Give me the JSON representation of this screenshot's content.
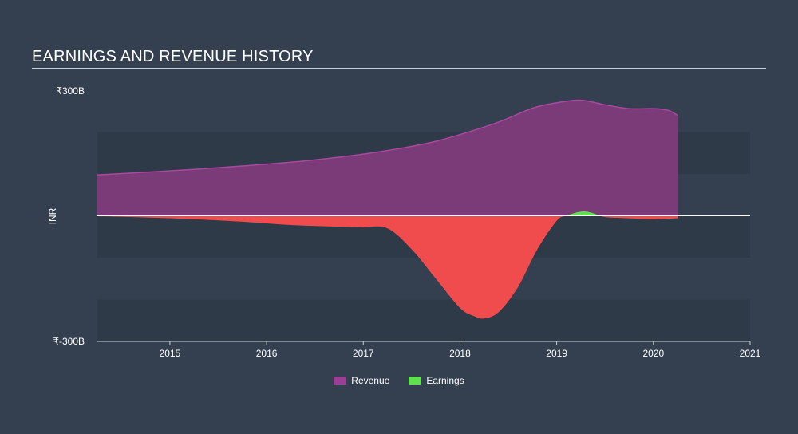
{
  "chart_data": {
    "type": "area",
    "title": "EARNINGS AND REVENUE HISTORY",
    "ylabel": "INR",
    "ytick_labels": [
      "₹300B",
      "₹-300B"
    ],
    "ylim": [
      -300,
      300
    ],
    "xlim": [
      2014.25,
      2021.0
    ],
    "xticks": [
      2015,
      2016,
      2017,
      2018,
      2019,
      2020,
      2021
    ],
    "xtick_labels": [
      "2015",
      "2016",
      "2017",
      "2018",
      "2019",
      "2020",
      "2021"
    ],
    "grid": true,
    "legend_position": "bottom-center",
    "series": [
      {
        "name": "Revenue",
        "color": "#7b3a78",
        "stroke": "#a8499f",
        "legend_color": "#9b3f96",
        "x": [
          2014.25,
          2014.75,
          2015.25,
          2015.75,
          2016.25,
          2016.75,
          2017.25,
          2017.75,
          2018.25,
          2018.5,
          2018.75,
          2019.0,
          2019.25,
          2019.5,
          2019.75,
          2020.0,
          2020.15,
          2020.25
        ],
        "values": [
          98,
          104,
          111,
          119,
          128,
          140,
          156,
          178,
          212,
          233,
          257,
          270,
          276,
          265,
          256,
          256,
          252,
          240
        ]
      },
      {
        "name": "Earnings",
        "color": "#f04c4e",
        "positive_color": "#5ee04f",
        "legend_color": "#5ee04f",
        "x": [
          2014.25,
          2014.75,
          2015.25,
          2015.75,
          2016.25,
          2016.75,
          2017.0,
          2017.25,
          2017.5,
          2017.75,
          2018.0,
          2018.15,
          2018.25,
          2018.4,
          2018.6,
          2018.8,
          2019.0,
          2019.1,
          2019.25,
          2019.35,
          2019.5,
          2019.75,
          2020.0,
          2020.25
        ],
        "values": [
          -1,
          -4,
          -8,
          -14,
          -22,
          -26,
          -27,
          -30,
          -80,
          -150,
          -220,
          -240,
          -245,
          -230,
          -170,
          -80,
          -12,
          0,
          10,
          8,
          -3,
          -6,
          -8,
          -6
        ]
      }
    ]
  }
}
